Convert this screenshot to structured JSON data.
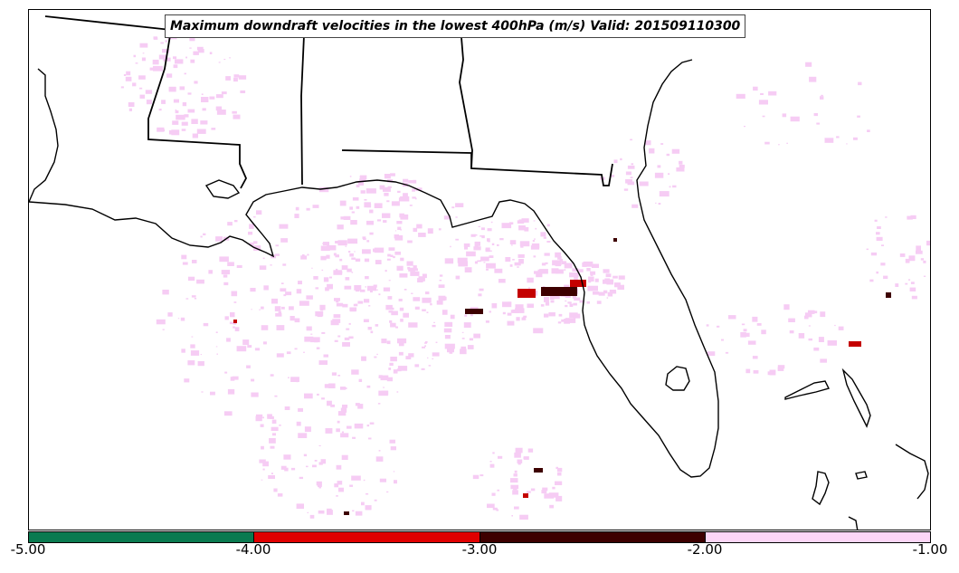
{
  "title": "Maximum downdraft velocities in the lowest 400hPa (m/s) Valid: 201509110300",
  "colorbar": {
    "ticks": [
      "-5.00",
      "-4.00",
      "-3.00",
      "-2.00",
      "-1.00"
    ],
    "bins": [
      {
        "range": [
          -5.0,
          -4.0
        ],
        "color": "#0a7a50"
      },
      {
        "range": [
          -4.0,
          -3.0
        ],
        "color": "#e00000"
      },
      {
        "range": [
          -3.0,
          -2.0
        ],
        "color": "#3d0000"
      },
      {
        "range": [
          -2.0,
          -1.0
        ],
        "color": "#fcd6f6"
      }
    ]
  },
  "map": {
    "region": "US Gulf Coast and Florida",
    "features": [
      "coastline",
      "state-boundaries"
    ],
    "field_colors": {
      "weak": "#f6ccf4",
      "moderate": "#c40000",
      "strong": "#3d0000"
    }
  }
}
